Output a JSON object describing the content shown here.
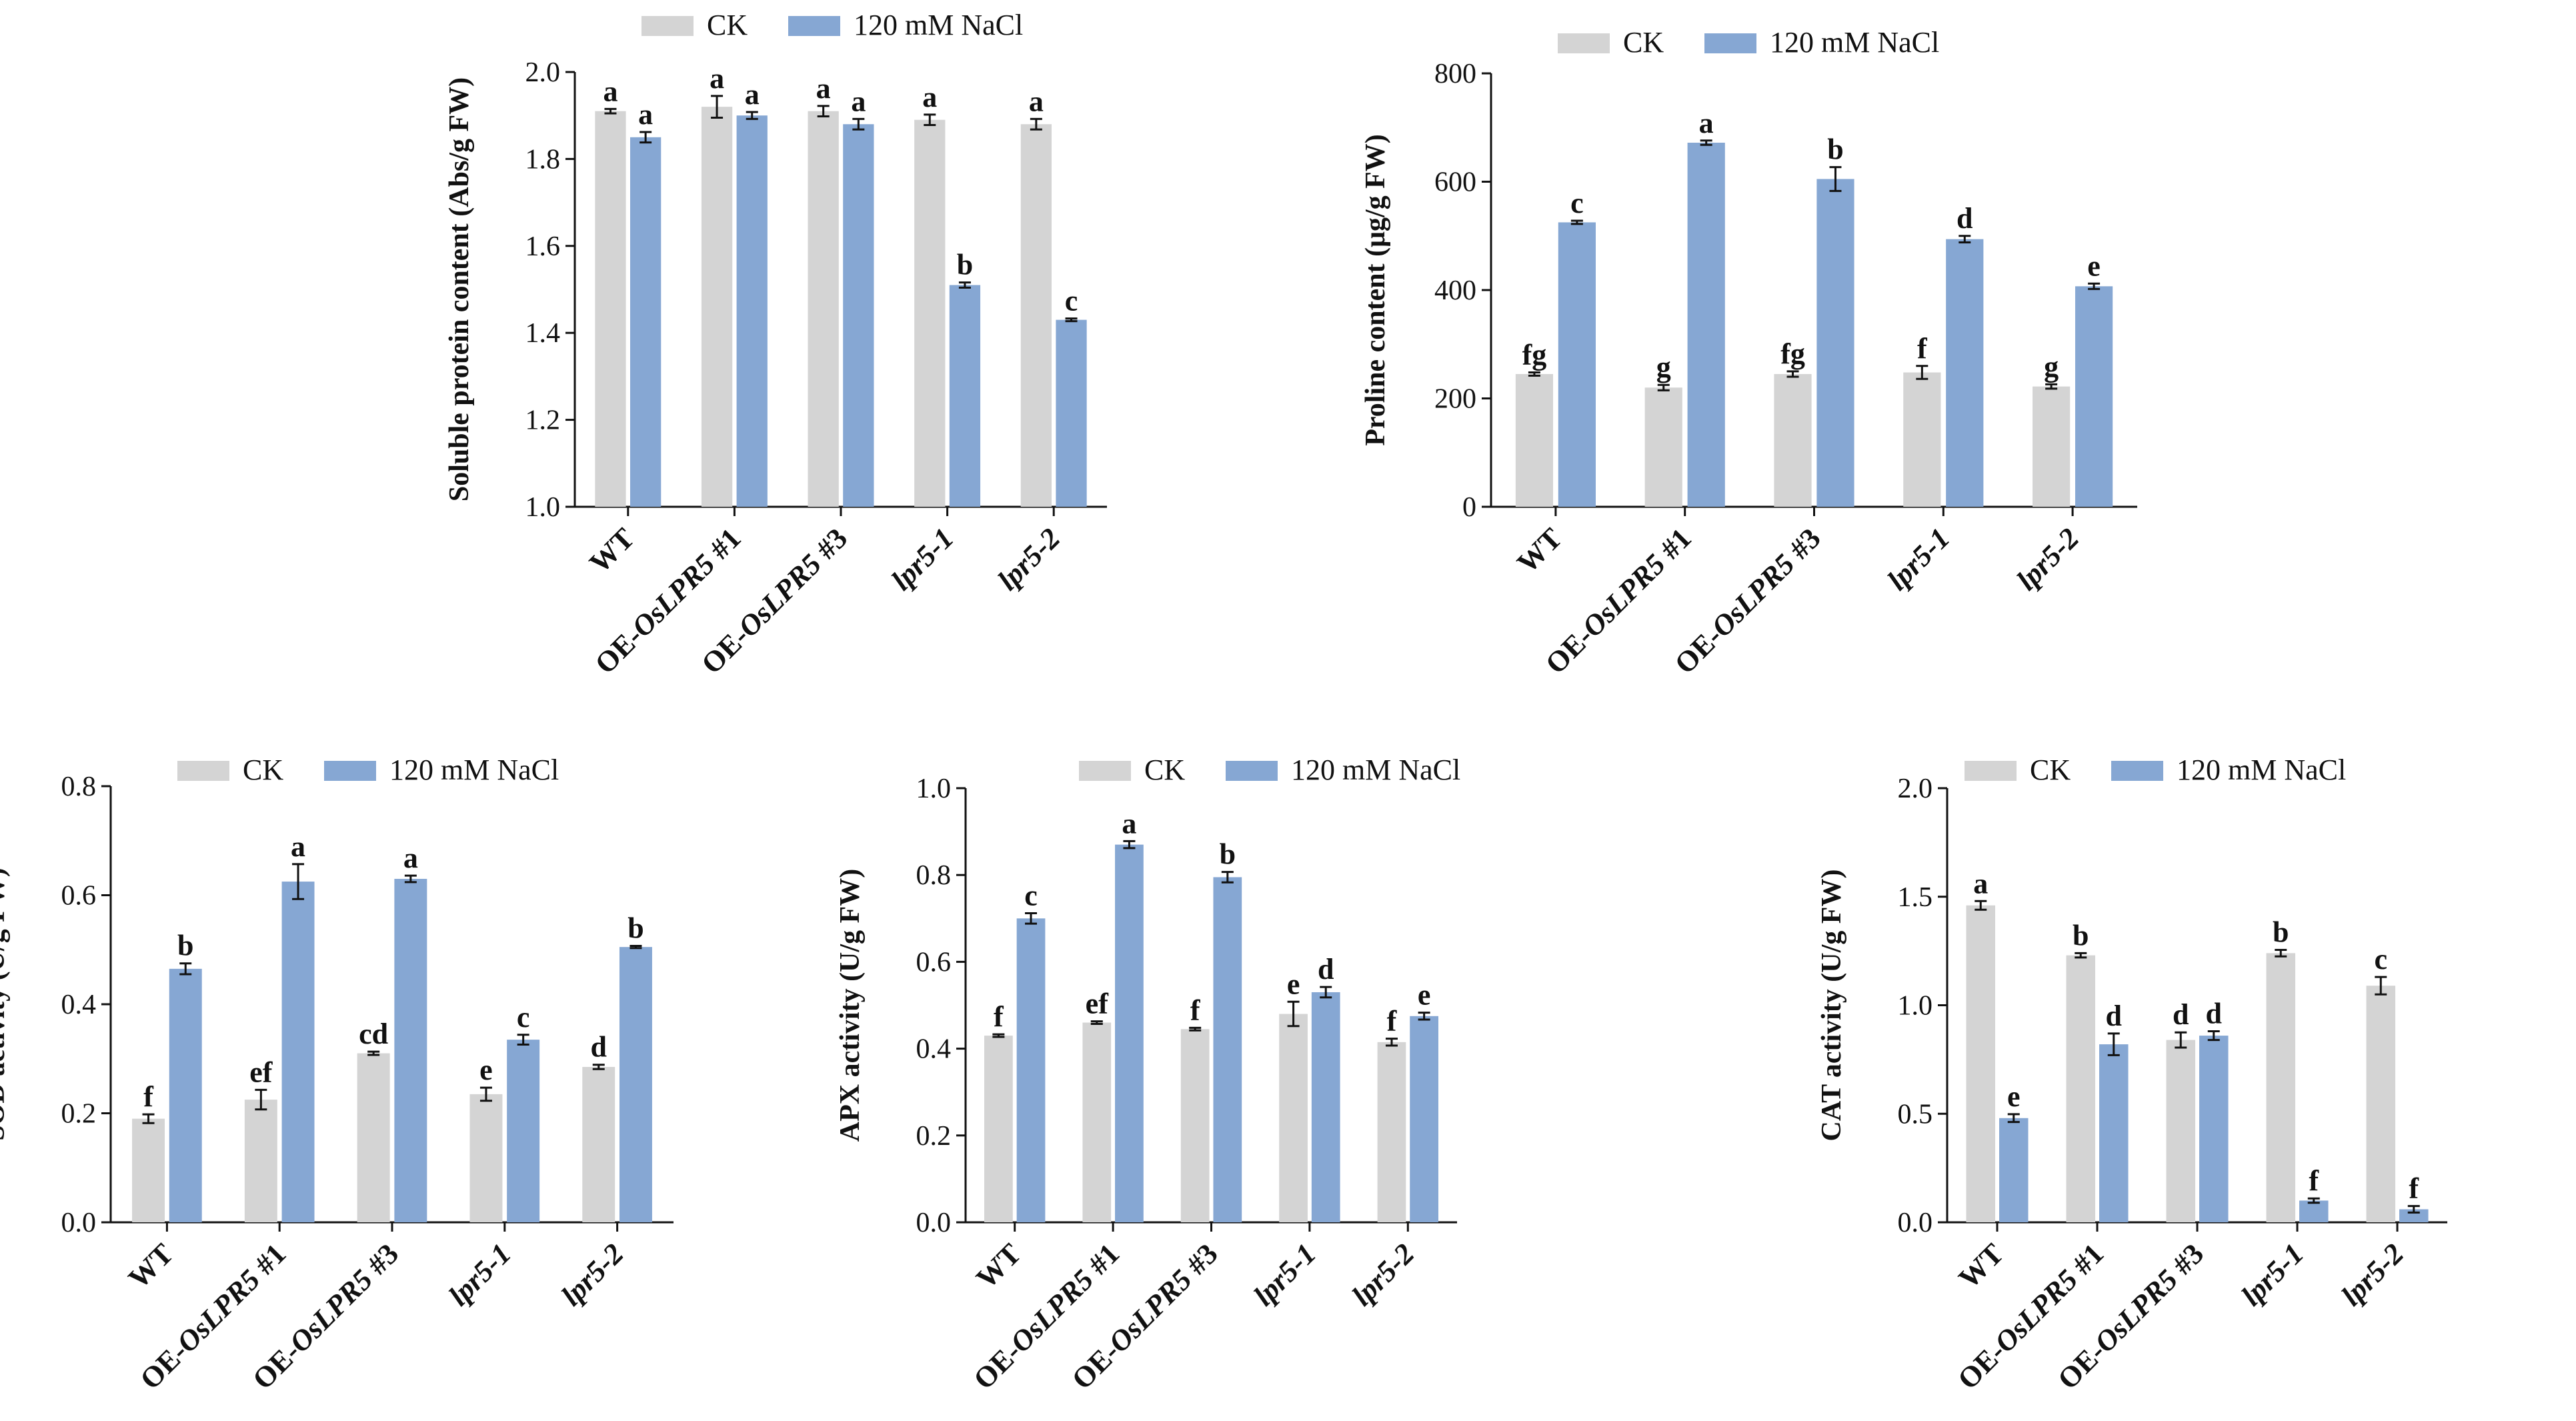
{
  "colors": {
    "ck": "#d4d4d4",
    "nacl": "#86a7d3",
    "axis": "#111111"
  },
  "chart_data": [
    {
      "type": "bar",
      "ylabel": "Soluble protein content (Abs/g FW)",
      "ylim": [
        1.0,
        2.0
      ],
      "yticks": [
        "1.0",
        "1.2",
        "1.4",
        "1.6",
        "1.8",
        "2.0"
      ],
      "categories": [
        {
          "pre": "WT",
          "italic": "",
          "post": ""
        },
        {
          "pre": "OE-",
          "italic": "OsLPR5",
          "post": " #1"
        },
        {
          "pre": "OE-",
          "italic": "OsLPR5",
          "post": " #3"
        },
        {
          "pre": "",
          "italic": "lpr5-1",
          "post": ""
        },
        {
          "pre": "",
          "italic": "lpr5-2",
          "post": ""
        }
      ],
      "legend": [
        "CK",
        "120 mM NaCl"
      ],
      "series": [
        {
          "name": "CK",
          "values": [
            1.91,
            1.92,
            1.91,
            1.89,
            1.88
          ],
          "errors": [
            0.005,
            0.025,
            0.012,
            0.012,
            0.012
          ],
          "letters": [
            "a",
            "a",
            "a",
            "a",
            "a"
          ]
        },
        {
          "name": "120 mM NaCl",
          "values": [
            1.85,
            1.9,
            1.88,
            1.51,
            1.43
          ],
          "errors": [
            0.012,
            0.008,
            0.012,
            0.006,
            0.003
          ],
          "letters": [
            "a",
            "a",
            "a",
            "b",
            "c"
          ]
        }
      ]
    },
    {
      "type": "bar",
      "ylabel": "Proline content (μg/g FW)",
      "ylim": [
        0,
        800
      ],
      "yticks": [
        "0",
        "200",
        "400",
        "600",
        "800"
      ],
      "categories": [
        {
          "pre": "WT",
          "italic": "",
          "post": ""
        },
        {
          "pre": "OE-",
          "italic": "OsLPR5",
          "post": " #1"
        },
        {
          "pre": "OE-",
          "italic": "OsLPR5",
          "post": " #3"
        },
        {
          "pre": "",
          "italic": "lpr5-1",
          "post": ""
        },
        {
          "pre": "",
          "italic": "lpr5-2",
          "post": ""
        }
      ],
      "legend": [
        "CK",
        "120 mM NaCl"
      ],
      "series": [
        {
          "name": "CK",
          "values": [
            245,
            220,
            245,
            248,
            222
          ],
          "errors": [
            3,
            5,
            5,
            12,
            4
          ],
          "letters": [
            "fg",
            "g",
            "fg",
            "f",
            "g"
          ]
        },
        {
          "name": "120 mM NaCl",
          "values": [
            525,
            672,
            605,
            494,
            407
          ],
          "errors": [
            3,
            4,
            22,
            6,
            5
          ],
          "letters": [
            "c",
            "a",
            "b",
            "d",
            "e"
          ]
        }
      ]
    },
    {
      "type": "bar",
      "ylabel": "SOD activity (U/g FW)",
      "ylim": [
        0.0,
        0.8
      ],
      "yticks": [
        "0.0",
        "0.2",
        "0.4",
        "0.6",
        "0.8"
      ],
      "categories": [
        {
          "pre": "WT",
          "italic": "",
          "post": ""
        },
        {
          "pre": "OE-",
          "italic": "OsLPR5",
          "post": " #1"
        },
        {
          "pre": "OE-",
          "italic": "OsLPR5",
          "post": " #3"
        },
        {
          "pre": "",
          "italic": "lpr5-1",
          "post": ""
        },
        {
          "pre": "",
          "italic": "lpr5-2",
          "post": ""
        }
      ],
      "legend": [
        "CK",
        "120 mM NaCl"
      ],
      "series": [
        {
          "name": "CK",
          "values": [
            0.19,
            0.225,
            0.31,
            0.235,
            0.285
          ],
          "errors": [
            0.008,
            0.018,
            0.003,
            0.012,
            0.004
          ],
          "letters": [
            "f",
            "ef",
            "cd",
            "e",
            "d"
          ]
        },
        {
          "name": "120 mM NaCl",
          "values": [
            0.465,
            0.625,
            0.63,
            0.335,
            0.505
          ],
          "errors": [
            0.01,
            0.032,
            0.006,
            0.009,
            0.002
          ],
          "letters": [
            "b",
            "a",
            "a",
            "c",
            "b"
          ]
        }
      ]
    },
    {
      "type": "bar",
      "ylabel": "APX activity (U/g FW)",
      "ylim": [
        0.0,
        1.0
      ],
      "yticks": [
        "0.0",
        "0.2",
        "0.4",
        "0.6",
        "0.8",
        "1.0"
      ],
      "categories": [
        {
          "pre": "WT",
          "italic": "",
          "post": ""
        },
        {
          "pre": "OE-",
          "italic": "OsLPR5",
          "post": " #1"
        },
        {
          "pre": "OE-",
          "italic": "OsLPR5",
          "post": " #3"
        },
        {
          "pre": "",
          "italic": "lpr5-1",
          "post": ""
        },
        {
          "pre": "",
          "italic": "lpr5-2",
          "post": ""
        }
      ],
      "legend": [
        "CK",
        "120 mM NaCl"
      ],
      "series": [
        {
          "name": "CK",
          "values": [
            0.43,
            0.46,
            0.445,
            0.48,
            0.415
          ],
          "errors": [
            0.003,
            0.003,
            0.003,
            0.028,
            0.008
          ],
          "letters": [
            "f",
            "ef",
            "f",
            "e",
            "f"
          ]
        },
        {
          "name": "120 mM NaCl",
          "values": [
            0.7,
            0.87,
            0.795,
            0.53,
            0.475
          ],
          "errors": [
            0.012,
            0.008,
            0.012,
            0.012,
            0.008
          ],
          "letters": [
            "c",
            "a",
            "b",
            "d",
            "e"
          ]
        }
      ]
    },
    {
      "type": "bar",
      "ylabel": "CAT activity (U/g FW)",
      "ylim": [
        0.0,
        2.0
      ],
      "yticks": [
        "0.0",
        "0.5",
        "1.0",
        "1.5",
        "2.0"
      ],
      "categories": [
        {
          "pre": "WT",
          "italic": "",
          "post": ""
        },
        {
          "pre": "OE-",
          "italic": "OsLPR5",
          "post": " #1"
        },
        {
          "pre": "OE-",
          "italic": "OsLPR5",
          "post": " #3"
        },
        {
          "pre": "",
          "italic": "lpr5-1",
          "post": ""
        },
        {
          "pre": "",
          "italic": "lpr5-2",
          "post": ""
        }
      ],
      "legend": [
        "CK",
        "120 mM NaCl"
      ],
      "series": [
        {
          "name": "CK",
          "values": [
            1.46,
            1.23,
            0.84,
            1.24,
            1.09
          ],
          "errors": [
            0.02,
            0.01,
            0.035,
            0.015,
            0.04
          ],
          "letters": [
            "a",
            "b",
            "d",
            "b",
            "c"
          ]
        },
        {
          "name": "120 mM NaCl",
          "values": [
            0.48,
            0.82,
            0.86,
            0.1,
            0.06
          ],
          "errors": [
            0.018,
            0.05,
            0.02,
            0.01,
            0.015
          ],
          "letters": [
            "e",
            "d",
            "d",
            "f",
            "f"
          ]
        }
      ]
    }
  ]
}
